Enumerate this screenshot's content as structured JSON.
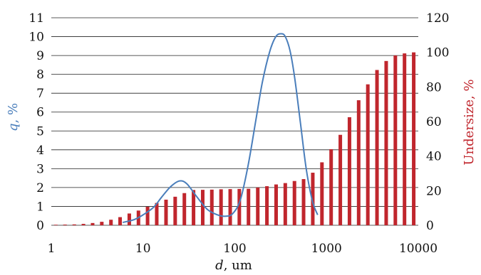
{
  "chart_data": {
    "type": "bar",
    "x_axis": {
      "label": "d, um",
      "label_var": "d",
      "label_unit": ", um",
      "scale": "log",
      "range": [
        1,
        10000
      ],
      "ticks": [
        1,
        10,
        100,
        1000,
        10000
      ],
      "tick_labels": [
        "1",
        "10",
        "100",
        "1000",
        "10000"
      ]
    },
    "y_left": {
      "label": "q, %",
      "label_var": "q",
      "label_unit": ", %",
      "range": [
        0,
        11
      ],
      "ticks": [
        0,
        1,
        2,
        3,
        4,
        5,
        6,
        7,
        8,
        9,
        10,
        11
      ],
      "color": "#4a7ebb"
    },
    "y_right": {
      "label": "Undersize, %",
      "range": [
        0,
        120
      ],
      "ticks": [
        0,
        20,
        40,
        60,
        80,
        100,
        120
      ],
      "color": "#c0262d"
    },
    "grid": true,
    "series": [
      {
        "type": "bar",
        "axis": "right",
        "color": "#c0262d",
        "x": [
          1.12,
          1.41,
          1.78,
          2.24,
          2.82,
          3.55,
          4.47,
          5.62,
          7.08,
          8.91,
          11.2,
          14.1,
          17.8,
          22.4,
          28.2,
          35.5,
          44.7,
          56.2,
          70.8,
          89.1,
          112,
          141,
          178,
          224,
          282,
          355,
          447,
          562,
          708,
          891,
          1122,
          1413,
          1778,
          2239,
          2818,
          3548,
          4467,
          5623,
          7079,
          8913
        ],
        "y": [
          0.3,
          0.4,
          0.5,
          0.8,
          1.3,
          2.0,
          3.2,
          4.7,
          6.8,
          8.5,
          10.7,
          12.9,
          14.8,
          16.5,
          18.6,
          20.4,
          20.5,
          20.6,
          20.8,
          20.9,
          21.0,
          21.1,
          21.8,
          22.6,
          23.6,
          24.4,
          25.6,
          26.7,
          30.4,
          36.4,
          44.0,
          52.3,
          62.5,
          72.3,
          81.5,
          89.8,
          95.0,
          98.2,
          99.4,
          100.0
        ]
      },
      {
        "type": "line",
        "axis": "left",
        "color": "#4a7ebb",
        "x": [
          6.0,
          8,
          10,
          13,
          16,
          20,
          25,
          30,
          38,
          50,
          65,
          80,
          95,
          115,
          140,
          170,
          200,
          240,
          280,
          320,
          355,
          400,
          450,
          520,
          600,
          700,
          800
        ],
        "y": [
          0.15,
          0.3,
          0.55,
          0.95,
          1.5,
          2.05,
          2.35,
          2.2,
          1.55,
          0.85,
          0.55,
          0.48,
          0.62,
          1.35,
          3.2,
          5.6,
          7.6,
          9.2,
          10.0,
          10.15,
          10.0,
          9.25,
          7.8,
          5.4,
          3.0,
          1.3,
          0.55
        ]
      }
    ]
  }
}
